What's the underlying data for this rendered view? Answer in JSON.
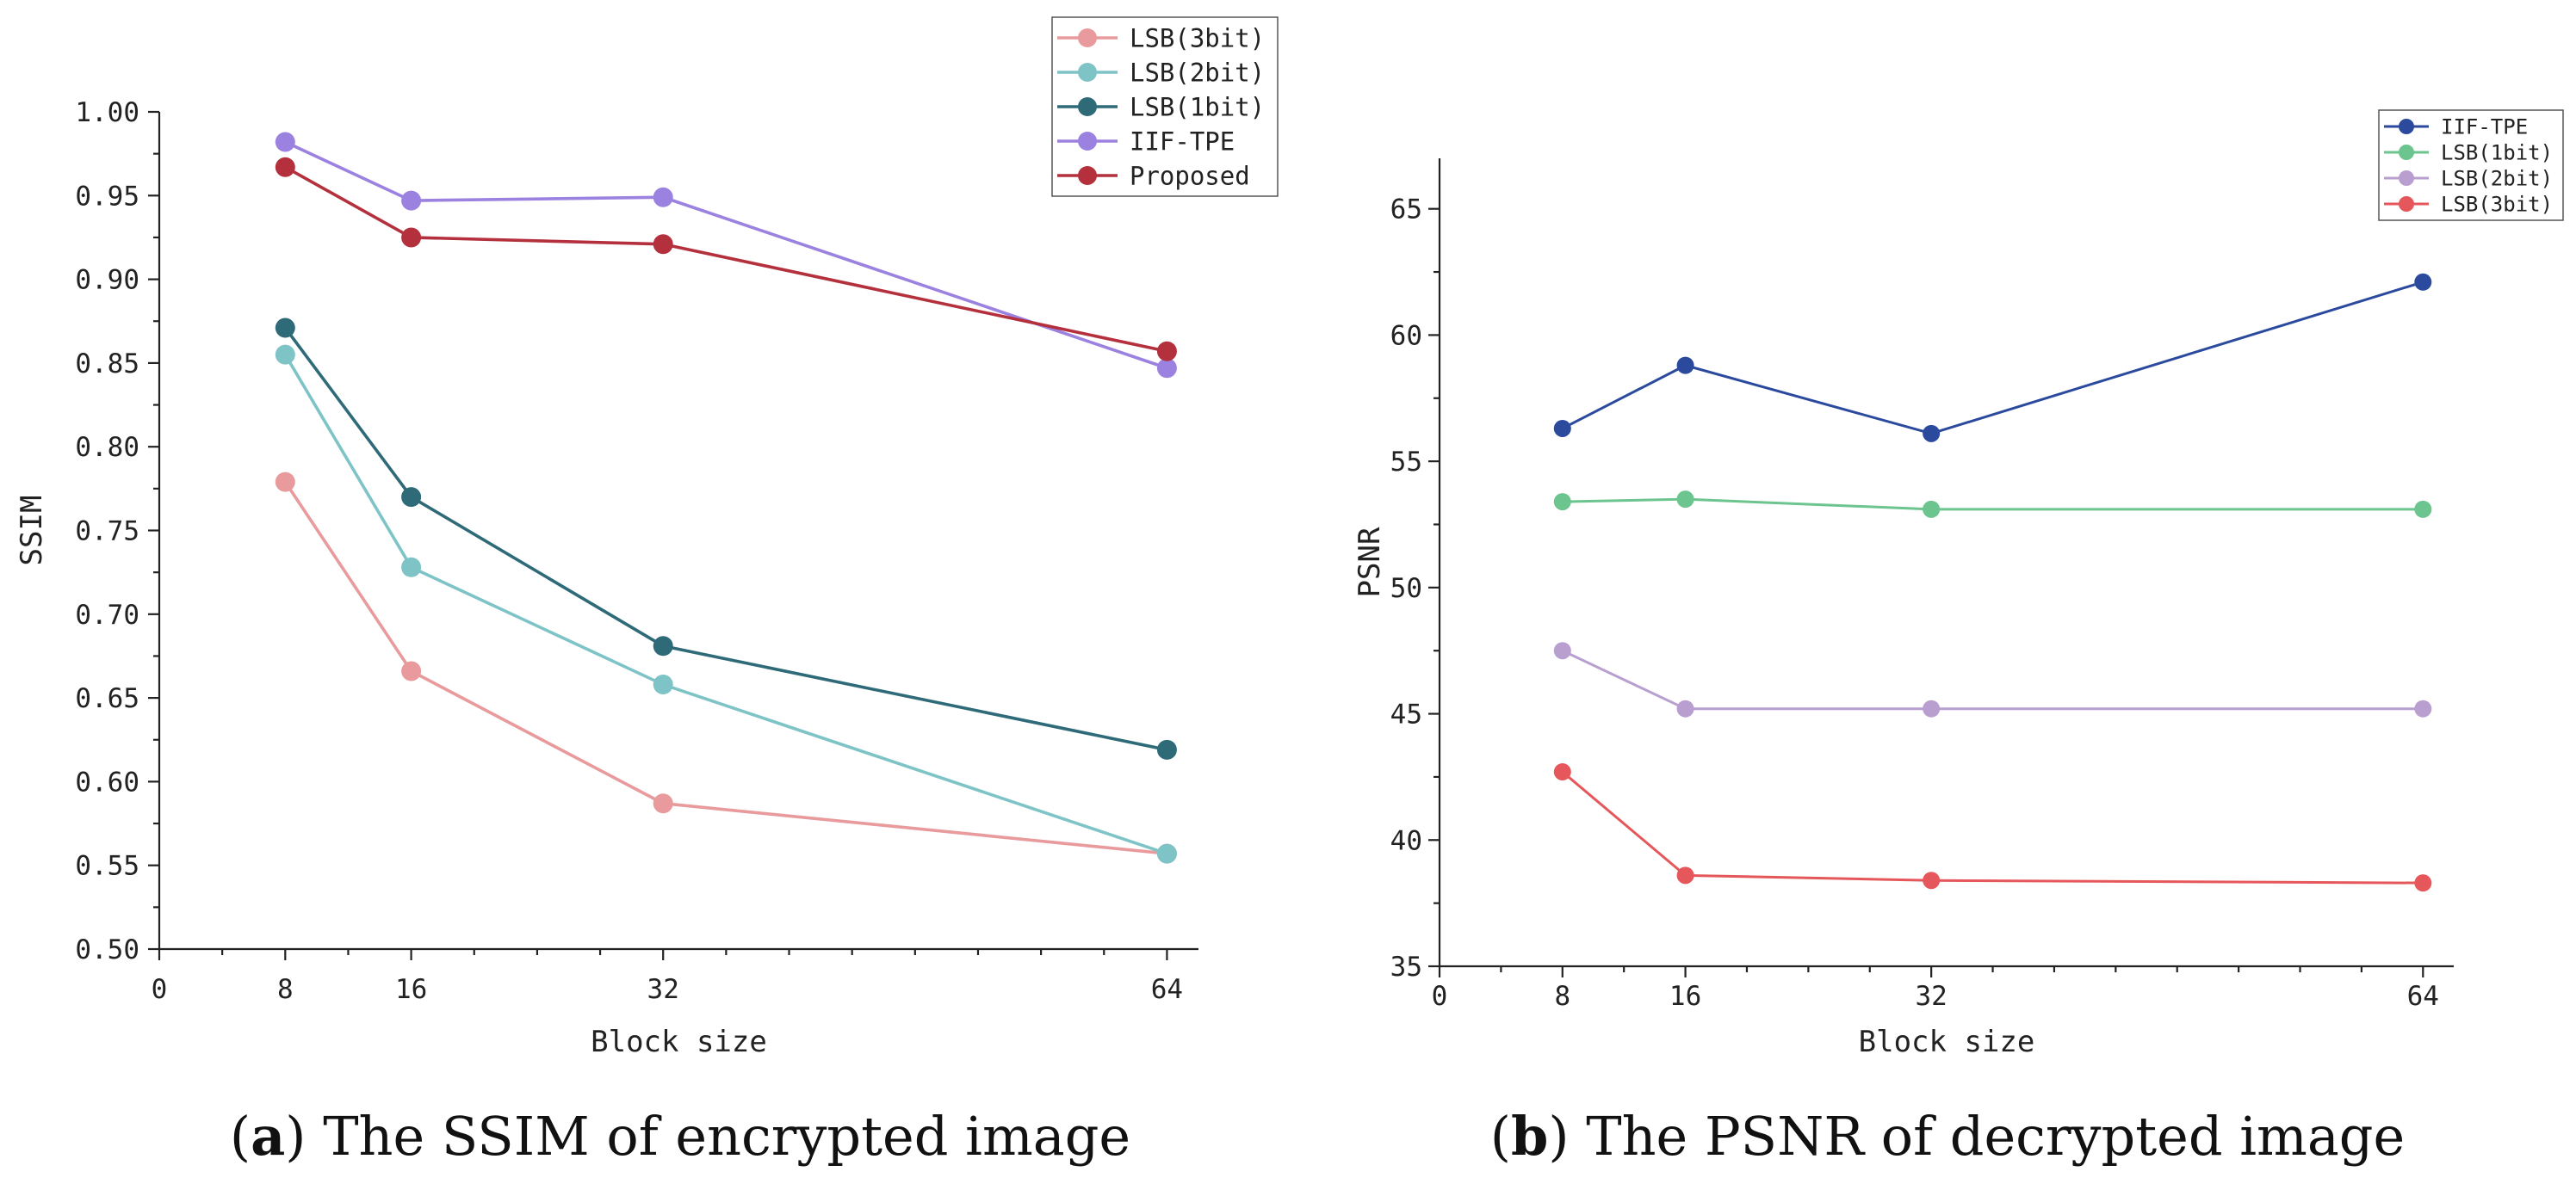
{
  "chart_data": [
    {
      "id": "a",
      "type": "line",
      "caption": {
        "label": "a",
        "text": "The SSIM of encrypted image"
      },
      "xlabel": "Block size",
      "ylabel": "SSIM",
      "xlim": [
        0,
        66
      ],
      "ylim": [
        0.5,
        1.0
      ],
      "xticks": [
        0,
        8,
        16,
        32,
        64
      ],
      "yticks": [
        0.5,
        0.55,
        0.6,
        0.65,
        0.7,
        0.75,
        0.8,
        0.85,
        0.9,
        0.95,
        1.0
      ],
      "ytick_labels": [
        "0.50",
        "0.55",
        "0.60",
        "0.65",
        "0.70",
        "0.75",
        "0.80",
        "0.85",
        "0.90",
        "0.95",
        "1.00"
      ],
      "legend": "top-right",
      "series": [
        {
          "name": "LSB(3bit)",
          "color": "#e89a9c",
          "x": [
            8,
            16,
            32,
            64
          ],
          "values": [
            0.779,
            0.666,
            0.587,
            0.557
          ]
        },
        {
          "name": "LSB(2bit)",
          "color": "#7ec4c7",
          "x": [
            8,
            16,
            32,
            64
          ],
          "values": [
            0.855,
            0.728,
            0.658,
            0.557
          ]
        },
        {
          "name": "LSB(1bit)",
          "color": "#2e6a78",
          "x": [
            8,
            16,
            32,
            64
          ],
          "values": [
            0.871,
            0.77,
            0.681,
            0.619
          ]
        },
        {
          "name": "IIF-TPE",
          "color": "#9b82e0",
          "x": [
            8,
            16,
            32,
            64
          ],
          "values": [
            0.982,
            0.947,
            0.949,
            0.847
          ]
        },
        {
          "name": "Proposed",
          "color": "#b3303c",
          "x": [
            8,
            16,
            32,
            64
          ],
          "values": [
            0.967,
            0.925,
            0.921,
            0.857
          ]
        }
      ]
    },
    {
      "id": "b",
      "type": "line",
      "caption": {
        "label": "b",
        "text": "The PSNR of decrypted image"
      },
      "xlabel": "Block size",
      "ylabel": "PSNR",
      "xlim": [
        0,
        66
      ],
      "ylim": [
        35,
        67
      ],
      "xticks": [
        0,
        8,
        16,
        32,
        64
      ],
      "yticks": [
        35,
        40,
        45,
        50,
        55,
        60,
        65
      ],
      "ytick_labels": [
        "35",
        "40",
        "45",
        "50",
        "55",
        "60",
        "65"
      ],
      "legend": "top-right",
      "series": [
        {
          "name": "IIF-TPE",
          "color": "#2b4a9e",
          "x": [
            8,
            16,
            32,
            64
          ],
          "values": [
            56.3,
            58.8,
            56.1,
            62.1
          ]
        },
        {
          "name": "LSB(1bit)",
          "color": "#6cc48e",
          "x": [
            8,
            16,
            32,
            64
          ],
          "values": [
            53.4,
            53.5,
            53.1,
            53.1
          ]
        },
        {
          "name": "LSB(2bit)",
          "color": "#b99fd0",
          "x": [
            8,
            16,
            32,
            64
          ],
          "values": [
            47.5,
            45.2,
            45.2,
            45.2
          ]
        },
        {
          "name": "LSB(3bit)",
          "color": "#e5575a",
          "x": [
            8,
            16,
            32,
            64
          ],
          "values": [
            42.7,
            38.6,
            38.4,
            38.3
          ]
        }
      ]
    }
  ]
}
